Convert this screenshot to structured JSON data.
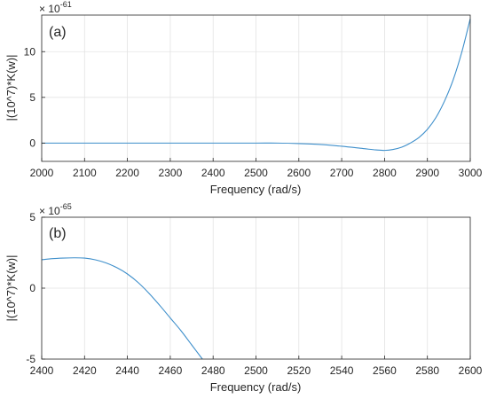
{
  "chart_data": [
    {
      "type": "line",
      "panel_label": "(a)",
      "xlabel": "Frequency (rad/s)",
      "ylabel": "|(10^7)*K(w)|",
      "exponent_base": "× 10",
      "exponent_power": "-61",
      "xlim": [
        2000,
        3000
      ],
      "ylim": [
        -2,
        14
      ],
      "xticks": [
        "2000",
        "2100",
        "2200",
        "2300",
        "2400",
        "2500",
        "2600",
        "2700",
        "2800",
        "2900",
        "3000"
      ],
      "yticks": [
        "0",
        "5",
        "10"
      ],
      "grid": true,
      "line_color": "#3E8FCB",
      "series": [
        {
          "x": [
            2000,
            2100,
            2200,
            2300,
            2400,
            2500,
            2550,
            2600,
            2650,
            2700,
            2750,
            2780,
            2800,
            2820,
            2840,
            2860,
            2880,
            2900,
            2920,
            2940,
            2960,
            2980,
            3000
          ],
          "values": [
            0,
            0,
            0,
            0,
            0,
            0,
            0,
            -0.05,
            -0.15,
            -0.35,
            -0.6,
            -0.75,
            -0.8,
            -0.7,
            -0.45,
            0,
            0.6,
            1.5,
            2.8,
            4.6,
            6.9,
            9.9,
            13.6
          ]
        }
      ]
    },
    {
      "type": "line",
      "panel_label": "(b)",
      "xlabel": "Frequency (rad/s)",
      "ylabel": "|(10^7)*K(w)|",
      "exponent_base": "× 10",
      "exponent_power": "-65",
      "xlim": [
        2400,
        2600
      ],
      "ylim": [
        -5,
        5
      ],
      "xticks": [
        "2400",
        "2420",
        "2440",
        "2460",
        "2480",
        "2500",
        "2520",
        "2540",
        "2560",
        "2580",
        "2600"
      ],
      "yticks": [
        "-5",
        "0",
        "5"
      ],
      "grid": true,
      "line_color": "#3E8FCB",
      "series": [
        {
          "x": [
            2400,
            2405,
            2410,
            2415,
            2420,
            2425,
            2430,
            2435,
            2440,
            2445,
            2450,
            2455,
            2460,
            2465,
            2470,
            2475
          ],
          "values": [
            2.0,
            2.08,
            2.12,
            2.14,
            2.12,
            2.0,
            1.78,
            1.45,
            1.0,
            0.4,
            -0.35,
            -1.2,
            -2.1,
            -3.0,
            -4.0,
            -5.0
          ]
        }
      ]
    }
  ]
}
